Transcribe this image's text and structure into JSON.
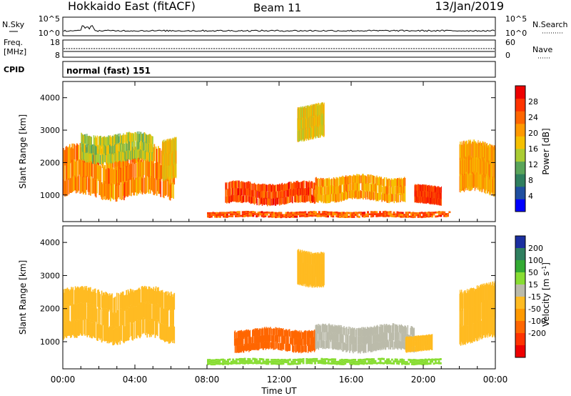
{
  "header": {
    "title": "Hokkaido East (fitACF)",
    "beam": "Beam 11",
    "date": "13/Jan/2019"
  },
  "strips": {
    "nsky": {
      "label": "N.Sky",
      "ticks_left": [
        "10^5",
        "10^0"
      ],
      "right_label": "N.Search",
      "ticks_right": [
        "10^5",
        "10^0"
      ]
    },
    "freq": {
      "label_line1": "Freq.",
      "label_line2": "[MHz]",
      "ticks_left": [
        "18",
        "8"
      ],
      "right_label": "Nave",
      "ticks_right": [
        "60",
        "0"
      ]
    },
    "cpid": {
      "label": "CPID",
      "value": "normal (fast) 151"
    }
  },
  "colors": {
    "power": [
      "#0000ff",
      "#1f4fa0",
      "#2f7f5f",
      "#5aa55a",
      "#aacc33",
      "#f5c000",
      "#ff9900",
      "#ff6600",
      "#ff3300",
      "#ee0000"
    ],
    "velocity": [
      "#1b2fa0",
      "#2f7f5f",
      "#33aa33",
      "#88dd33",
      "#bbbbaa",
      "#ffbb22",
      "#ff9900",
      "#ff6600",
      "#ff3300",
      "#ee0000"
    ]
  },
  "chart_data": [
    {
      "type": "heatmap",
      "panel": "power",
      "ylabel": "Slant Range [km]",
      "ylim": [
        180,
        4500
      ],
      "yticks": [
        "1000",
        "2000",
        "3000",
        "4000"
      ],
      "yticks_values": [
        1000,
        2000,
        3000,
        4000
      ],
      "colorbar_label": "Power [dB]",
      "colorbar_ticks": [
        "4",
        "8",
        "12",
        "16",
        "20",
        "24",
        "28"
      ],
      "colorbar_range": [
        0,
        32
      ],
      "regions": [
        {
          "t": [
            0.0,
            6.2
          ],
          "r": [
            900,
            2500
          ],
          "level": 22
        },
        {
          "t": [
            1.0,
            5.0
          ],
          "r": [
            2000,
            2900
          ],
          "level": 15
        },
        {
          "t": [
            5.5,
            6.3
          ],
          "r": [
            1500,
            2800
          ],
          "level": 18
        },
        {
          "t": [
            8.0,
            21.5
          ],
          "r": [
            300,
            500
          ],
          "level": 25
        },
        {
          "t": [
            9.0,
            14.0
          ],
          "r": [
            700,
            1400
          ],
          "level": 26
        },
        {
          "t": [
            14.0,
            19.0
          ],
          "r": [
            800,
            1600
          ],
          "level": 20
        },
        {
          "t": [
            19.5,
            21.0
          ],
          "r": [
            700,
            1300
          ],
          "level": 27
        },
        {
          "t": [
            22.0,
            24.0
          ],
          "r": [
            1000,
            2600
          ],
          "level": 20
        },
        {
          "t": [
            13.0,
            14.5
          ],
          "r": [
            2700,
            3800
          ],
          "level": 17
        }
      ]
    },
    {
      "type": "heatmap",
      "panel": "velocity",
      "xlabel": "Time UT",
      "xticks": [
        "00:00",
        "04:00",
        "08:00",
        "12:00",
        "16:00",
        "20:00",
        "00:00"
      ],
      "xticks_values": [
        0,
        4,
        8,
        12,
        16,
        20,
        24
      ],
      "xlim": [
        0,
        24
      ],
      "ylabel": "Slant Range [km]",
      "ylim": [
        180,
        4500
      ],
      "yticks": [
        "1000",
        "2000",
        "3000",
        "4000"
      ],
      "yticks_values": [
        1000,
        2000,
        3000,
        4000
      ],
      "colorbar_label": "Velocity [m s^-1]",
      "colorbar_ticks": [
        "200",
        "100",
        "50",
        "15",
        "-15",
        "-50",
        "-100",
        "-200"
      ],
      "regions": [
        {
          "t": [
            0.0,
            6.2
          ],
          "r": [
            1000,
            2600
          ],
          "level": 0
        },
        {
          "t": [
            9.5,
            14.0
          ],
          "r": [
            700,
            1400
          ],
          "level": -60
        },
        {
          "t": [
            14.0,
            19.5
          ],
          "r": [
            700,
            1500
          ],
          "level": 30
        },
        {
          "t": [
            8.0,
            21.0
          ],
          "r": [
            300,
            500
          ],
          "level": 60
        },
        {
          "t": [
            19.0,
            20.5
          ],
          "r": [
            700,
            1200
          ],
          "level": 0
        },
        {
          "t": [
            22.0,
            24.0
          ],
          "r": [
            1000,
            2700
          ],
          "level": 0
        },
        {
          "t": [
            13.0,
            14.5
          ],
          "r": [
            2700,
            3800
          ],
          "level": 0
        }
      ]
    }
  ]
}
